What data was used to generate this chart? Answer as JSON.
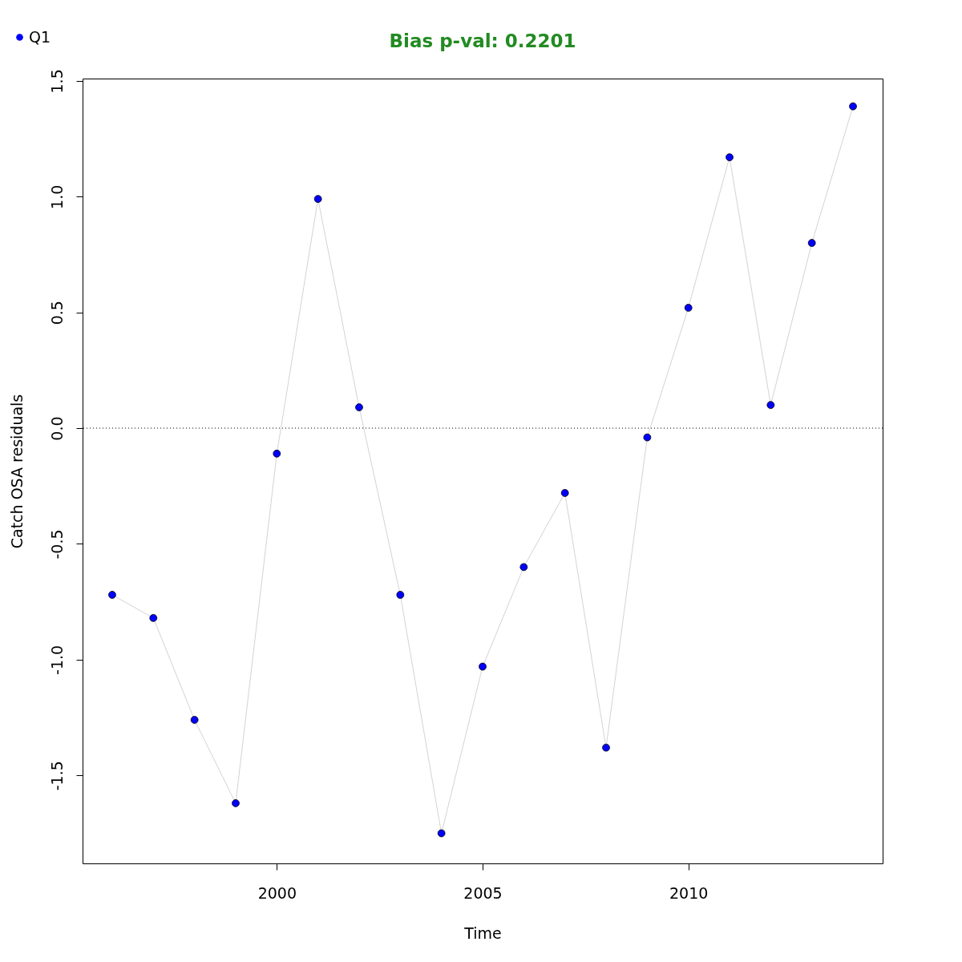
{
  "chart_data": {
    "type": "scatter",
    "title": "Bias p-val: 0.2201",
    "xlabel": "Time",
    "ylabel": "Catch OSA residuals",
    "x": [
      1996,
      1997,
      1998,
      1999,
      2000,
      2001,
      2002,
      2003,
      2004,
      2005,
      2006,
      2007,
      2008,
      2009,
      2010,
      2011,
      2012,
      2013,
      2014
    ],
    "series": [
      {
        "type": "line",
        "marker": "none",
        "color": "#d3d3d3",
        "values": [
          -0.72,
          -0.82,
          -1.26,
          -1.62,
          -0.11,
          0.99,
          0.09,
          -0.72,
          -1.75,
          -1.03,
          -0.6,
          -0.28,
          -1.38,
          -0.04,
          0.52,
          1.17,
          0.1,
          0.8,
          1.39
        ]
      },
      {
        "name": "Q1",
        "color": "#0000ff",
        "values": [
          -0.72,
          -0.82,
          -1.26,
          -1.62,
          -0.11,
          0.99,
          0.09,
          -0.72,
          -1.75,
          -1.03,
          -0.6,
          -0.28,
          -1.38,
          -0.04,
          0.52,
          1.17,
          0.1,
          0.8,
          1.39
        ]
      }
    ],
    "xlim": [
      1995.28,
      2014.72
    ],
    "xticks": [
      2000,
      2005,
      2010
    ],
    "ylim": [
      -1.88,
      1.51
    ],
    "yticks": [
      -1.5,
      {
        "value": -1,
        "label": "-1.0"
      },
      -0.5,
      {
        "value": 0,
        "label": "0.0"
      },
      0.5,
      {
        "value": 1,
        "label": "1.0"
      },
      1.5
    ],
    "ref_lines": [
      {
        "axis": "y",
        "value": 0,
        "color": "#000000",
        "line_style": "dotted"
      }
    ],
    "legend": "top left",
    "marker": "circle"
  }
}
